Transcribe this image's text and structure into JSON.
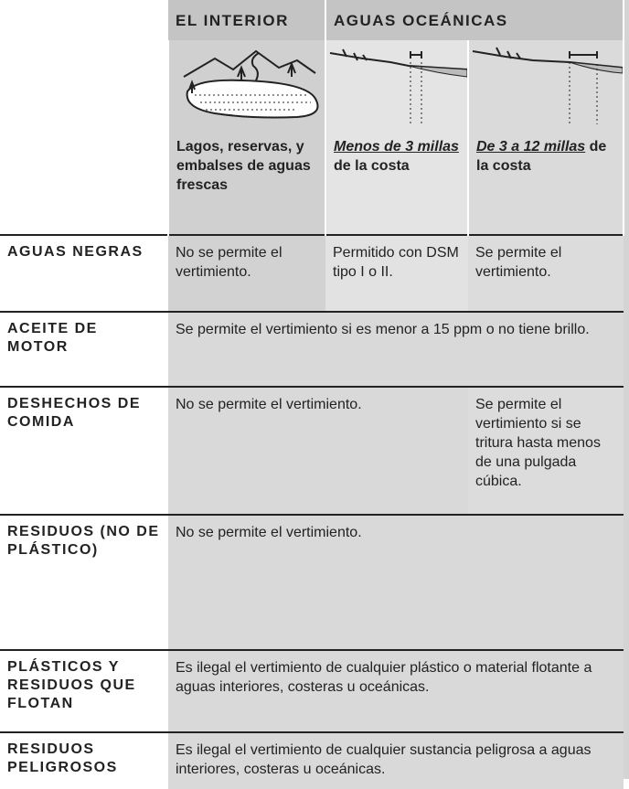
{
  "header": {
    "columns": [
      "EL INTERIOR",
      "AGUAS OCEÁNICAS"
    ]
  },
  "descriptions": [
    {
      "text": "Lagos, reservas, y embalses de aguas frescas"
    },
    {
      "em": "Menos de 3 millas",
      "text": "de la costa"
    },
    {
      "em": "De 3 a 12 millas",
      "text": "de la costa"
    }
  ],
  "rows": [
    {
      "label": "AGUAS NEGRAS",
      "cells": [
        "No se permite el vertimiento.",
        "Permitido con DSM tipo I o II.",
        "Se permite el vertimiento."
      ]
    },
    {
      "label": "ACEITE DE MOTOR",
      "cells": [
        "Se permite el vertimiento si es menor a 15 ppm o no tiene brillo."
      ]
    },
    {
      "label": "DESHECHOS DE COMIDA",
      "cells": [
        "No se permite el vertimiento.",
        "Se permite el vertimiento si se tritura hasta menos de una pulgada cúbica."
      ]
    },
    {
      "label": "RESIDUOS (NO DE PLÁSTICO)",
      "cells": [
        "No se permite el vertimiento."
      ]
    },
    {
      "label": "PLÁSTICOS Y RESIDUOS QUE FLOTAN",
      "cells": [
        "Es ilegal el vertimiento de cualquier plástico o material flotante a aguas interiores, costeras u oceánicas."
      ]
    },
    {
      "label": "RESIDUOS PELIGROSOS",
      "cells": [
        "Es ilegal el vertimiento de cualquier sustancia peligrosa a aguas interiores, costeras u oceánicas."
      ]
    }
  ]
}
